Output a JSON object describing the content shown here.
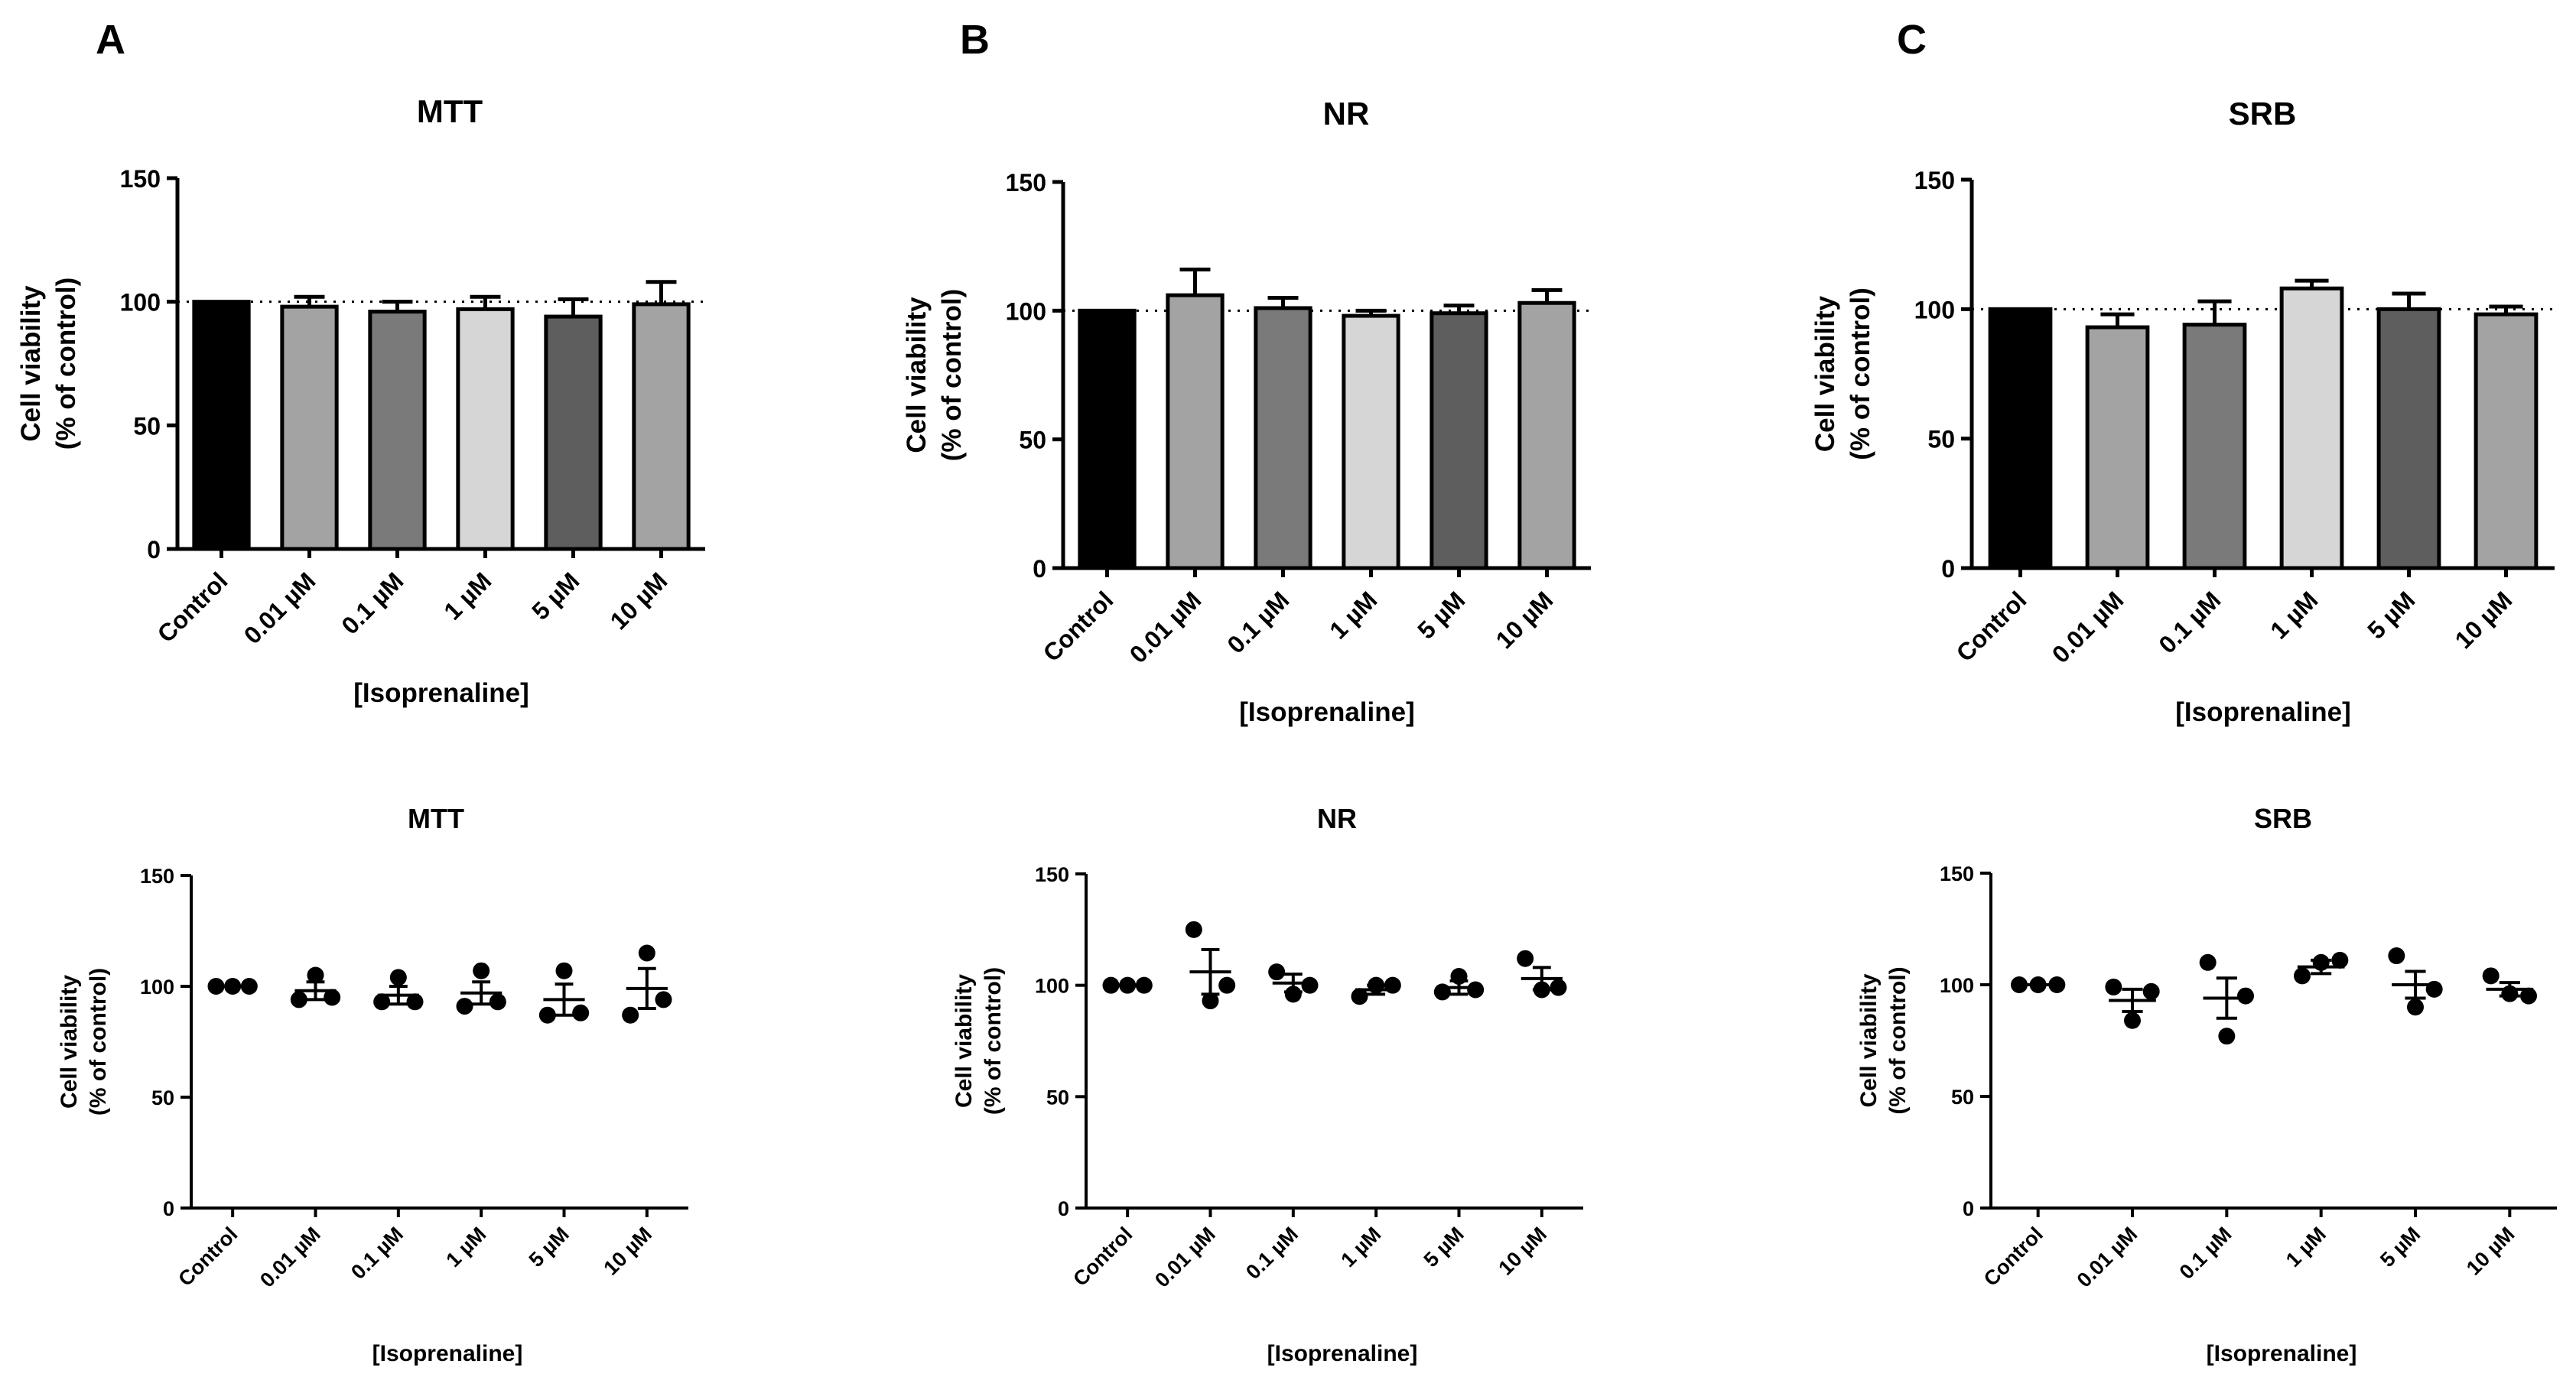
{
  "panels": [
    {
      "letter": "A"
    },
    {
      "letter": "B"
    },
    {
      "letter": "C"
    }
  ],
  "chart_data": [
    {
      "id": "A-bar",
      "type": "bar",
      "title": "MTT",
      "xlabel": "[Isoprenaline]",
      "ylabel": [
        "Cell viability",
        "(% of control)"
      ],
      "categories": [
        "Control",
        "0.01 µM",
        "0.1 µM",
        "1 µM",
        "5 µM",
        "10 µM"
      ],
      "values": [
        100,
        98,
        96,
        97,
        94,
        99
      ],
      "errors": [
        0,
        4,
        4,
        5,
        7,
        9
      ],
      "ylim": [
        0,
        150
      ],
      "yticks": [
        "0",
        "50",
        "100",
        "150"
      ],
      "reference_line": 100,
      "bar_colors": [
        "#000000",
        "#a3a3a3",
        "#7a7a7a",
        "#d6d6d6",
        "#5e5e5e",
        "#a3a3a3"
      ]
    },
    {
      "id": "B-bar",
      "type": "bar",
      "title": "NR",
      "xlabel": "[Isoprenaline]",
      "ylabel": [
        "Cell viability",
        "(% of control)"
      ],
      "categories": [
        "Control",
        "0.01 µM",
        "0.1 µM",
        "1 µM",
        "5 µM",
        "10 µM"
      ],
      "values": [
        100,
        106,
        101,
        98,
        99,
        103
      ],
      "errors": [
        0,
        10,
        4,
        2,
        3,
        5
      ],
      "ylim": [
        0,
        150
      ],
      "yticks": [
        "0",
        "50",
        "100",
        "150"
      ],
      "reference_line": 100,
      "bar_colors": [
        "#000000",
        "#a3a3a3",
        "#7a7a7a",
        "#d6d6d6",
        "#5e5e5e",
        "#a3a3a3"
      ]
    },
    {
      "id": "C-bar",
      "type": "bar",
      "title": "SRB",
      "xlabel": "[Isoprenaline]",
      "ylabel": [
        "Cell viability",
        "(% of control)"
      ],
      "categories": [
        "Control",
        "0.01 µM",
        "0.1 µM",
        "1 µM",
        "5 µM",
        "10 µM"
      ],
      "values": [
        100,
        93,
        94,
        108,
        100,
        98
      ],
      "errors": [
        0,
        5,
        9,
        3,
        6,
        3
      ],
      "ylim": [
        0,
        150
      ],
      "yticks": [
        "0",
        "50",
        "100",
        "150"
      ],
      "reference_line": 100,
      "bar_colors": [
        "#000000",
        "#a3a3a3",
        "#7a7a7a",
        "#d6d6d6",
        "#5e5e5e",
        "#a3a3a3"
      ]
    },
    {
      "id": "A-dot",
      "type": "scatter",
      "title": "MTT",
      "xlabel": "[Isoprenaline]",
      "ylabel": [
        "Cell viability",
        "(% of control)"
      ],
      "categories": [
        "Control",
        "0.01 µM",
        "0.1 µM",
        "1 µM",
        "5 µM",
        "10 µM"
      ],
      "points": [
        [
          100,
          100,
          100
        ],
        [
          94,
          105,
          95
        ],
        [
          93,
          104,
          93
        ],
        [
          91,
          107,
          93
        ],
        [
          87,
          107,
          88
        ],
        [
          87,
          115,
          94
        ]
      ],
      "means": [
        100,
        98,
        96,
        97,
        94,
        99
      ],
      "sems": [
        0,
        4,
        4,
        5,
        7,
        9
      ],
      "ylim": [
        0,
        150
      ],
      "yticks": [
        "0",
        "50",
        "100",
        "150"
      ]
    },
    {
      "id": "B-dot",
      "type": "scatter",
      "title": "NR",
      "xlabel": "[Isoprenaline]",
      "ylabel": [
        "Cell viability",
        "(% of control)"
      ],
      "categories": [
        "Control",
        "0.01 µM",
        "0.1 µM",
        "1 µM",
        "5 µM",
        "10 µM"
      ],
      "points": [
        [
          100,
          100,
          100
        ],
        [
          125,
          93,
          100
        ],
        [
          106,
          96,
          100
        ],
        [
          95,
          100,
          100
        ],
        [
          97,
          104,
          98
        ],
        [
          112,
          98,
          99
        ]
      ],
      "means": [
        100,
        106,
        101,
        98,
        99,
        103
      ],
      "sems": [
        0,
        10,
        4,
        2,
        3,
        5
      ],
      "ylim": [
        0,
        150
      ],
      "yticks": [
        "0",
        "50",
        "100",
        "150"
      ]
    },
    {
      "id": "C-dot",
      "type": "scatter",
      "title": "SRB",
      "xlabel": "[Isoprenaline]",
      "ylabel": [
        "Cell viability",
        "(% of control)"
      ],
      "categories": [
        "Control",
        "0.01 µM",
        "0.1 µM",
        "1 µM",
        "5 µM",
        "10 µM"
      ],
      "points": [
        [
          100,
          100,
          100
        ],
        [
          99,
          84,
          97
        ],
        [
          110,
          77,
          95
        ],
        [
          104,
          110,
          111
        ],
        [
          113,
          90,
          98
        ],
        [
          104,
          96,
          95
        ]
      ],
      "means": [
        100,
        93,
        94,
        108,
        100,
        98
      ],
      "sems": [
        0,
        5,
        9,
        3,
        6,
        3
      ],
      "ylim": [
        0,
        150
      ],
      "yticks": [
        "0",
        "50",
        "100",
        "150"
      ]
    }
  ]
}
